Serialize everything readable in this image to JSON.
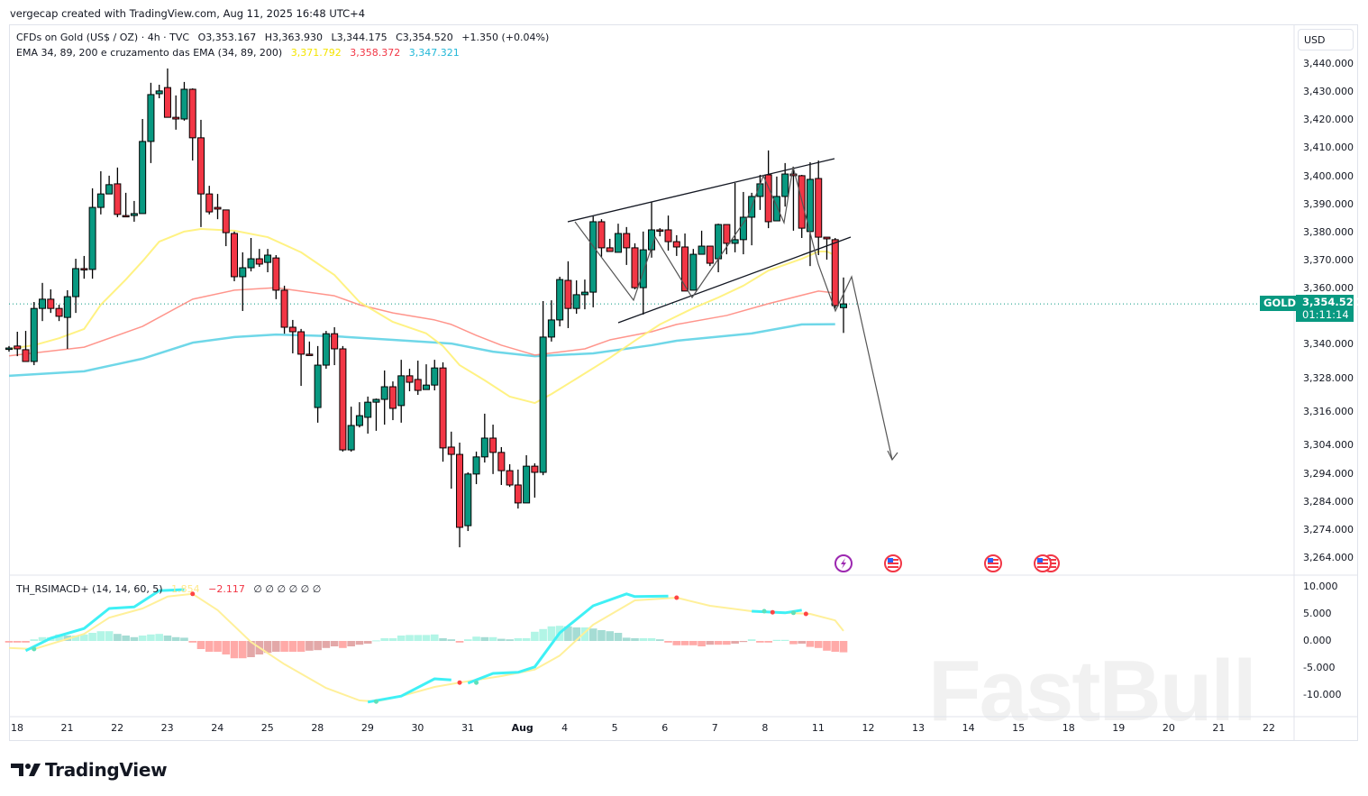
{
  "header": {
    "credit": "vergecap created with TradingView.com, Aug 11, 2025 16:48 UTC+4",
    "symbol_line": {
      "name": "CFDs on Gold (US$ / OZ) · 4h · TVC",
      "open": "O3,353.167",
      "high": "H3,363.930",
      "low": "L3,344.175",
      "close": "C3,354.520",
      "change": "+1.350 (+0.04%)"
    },
    "ema_line": {
      "name": "EMA 34, 89, 200 e cruzamento das EMA (34, 89, 200)",
      "v1": "3,371.792",
      "v2": "3,358.372",
      "v3": "3,347.321"
    }
  },
  "osc_legend": {
    "name": "TH_RSIMACD+ (14, 14, 60, 5)",
    "v1": "1.854",
    "v2": "−2.117",
    "nulls": [
      "∅",
      "∅",
      "∅",
      "∅",
      "∅",
      "∅"
    ]
  },
  "price_axis": {
    "currency": "USD",
    "ticks": [
      "3,440.000",
      "3,430.000",
      "3,420.000",
      "3,410.000",
      "3,400.000",
      "3,390.000",
      "3,380.000",
      "3,370.000",
      "3,360.000",
      "3,340.000",
      "3,328.000",
      "3,316.000",
      "3,304.000",
      "3,294.000",
      "3,284.000",
      "3,274.000",
      "3,264.000"
    ],
    "last_price": {
      "symbol": "GOLD",
      "price": "3,354.520",
      "countdown": "01:11:14"
    }
  },
  "osc_axis": {
    "ticks": [
      "10.000",
      "5.000",
      "0.000",
      "-5.000",
      "-10.000"
    ]
  },
  "time_axis": {
    "labels": [
      "18",
      "21",
      "22",
      "23",
      "24",
      "25",
      "28",
      "29",
      "30",
      "31",
      "Aug",
      "4",
      "5",
      "6",
      "7",
      "8",
      "11",
      "12",
      "13",
      "14",
      "15",
      "18",
      "19",
      "20",
      "21",
      "22"
    ]
  },
  "events": [
    "lightning-event-icon",
    "us-flag-event-icon",
    "us-flag-event-icon",
    "us-flag-event-icon",
    "us-flag-event-icon"
  ],
  "brand": {
    "logo_text": "TradingView"
  },
  "watermark": "FastBull",
  "colors": {
    "up": "#089981",
    "down": "#f23645",
    "ema34": "#fff176",
    "ema89": "#ff8a80",
    "ema200": "#5fd3e6",
    "osc_fast": "#3ff0f5",
    "osc_signal": "#fff09a",
    "hist_up": "#b2f5e6",
    "hist_up_fade": "#a5dcd4",
    "hist_down": "#ffaaa8",
    "hist_down_fade": "#e3a8a8",
    "last_price": "#089981"
  },
  "chart_data": {
    "type": "candlestick",
    "symbol": "CFDs on Gold (US$ / OZ)",
    "timeframe": "4h",
    "ylim": [
      3262,
      3448
    ],
    "candles_ohlc": [
      [
        3338.3,
        3339.5,
        3337.5,
        3338.8
      ],
      [
        3339.5,
        3344.6,
        3335.9,
        3338.5
      ],
      [
        3338.2,
        3344.9,
        3334.0,
        3334.0
      ],
      [
        3334.0,
        3355.2,
        3332.7,
        3352.9
      ],
      [
        3352.9,
        3362.0,
        3348.4,
        3356.2
      ],
      [
        3356.2,
        3359.7,
        3351.3,
        3352.9
      ],
      [
        3352.9,
        3354.2,
        3348.4,
        3350.1
      ],
      [
        3349.7,
        3359.4,
        3338.5,
        3357.1
      ],
      [
        3357.1,
        3370.6,
        3351.3,
        3367.1
      ],
      [
        3367.1,
        3371.6,
        3363.5,
        3366.8
      ],
      [
        3366.8,
        3395.7,
        3363.5,
        3388.9
      ],
      [
        3388.9,
        3401.8,
        3386.4,
        3393.7
      ],
      [
        3393.7,
        3400.2,
        3393.7,
        3397.0
      ],
      [
        3397.3,
        3403.1,
        3385.4,
        3386.4
      ],
      [
        3386.0,
        3394.1,
        3385.4,
        3385.9
      ],
      [
        3386.0,
        3391.2,
        3383.8,
        3386.7
      ],
      [
        3386.7,
        3420.4,
        3386.7,
        3412.4
      ],
      [
        3412.4,
        3433.3,
        3404.7,
        3429.1
      ],
      [
        3429.4,
        3432.6,
        3427.8,
        3430.4
      ],
      [
        3431.6,
        3438.4,
        3421.0,
        3421.0
      ],
      [
        3421.0,
        3428.8,
        3416.6,
        3420.4
      ],
      [
        3420.4,
        3433.6,
        3419.8,
        3431.0
      ],
      [
        3431.0,
        3431.3,
        3405.6,
        3413.7
      ],
      [
        3413.7,
        3420.1,
        3381.9,
        3393.7
      ],
      [
        3393.7,
        3396.6,
        3386.4,
        3387.3
      ],
      [
        3388.9,
        3393.7,
        3384.7,
        3388.3
      ],
      [
        3388.0,
        3388.0,
        3375.1,
        3379.9
      ],
      [
        3379.6,
        3380.3,
        3362.6,
        3364.2
      ],
      [
        3364.2,
        3372.9,
        3352.0,
        3367.4
      ],
      [
        3367.4,
        3378.0,
        3366.1,
        3370.6
      ],
      [
        3370.6,
        3374.1,
        3367.7,
        3368.7
      ],
      [
        3369.3,
        3374.1,
        3365.8,
        3371.9
      ],
      [
        3370.9,
        3371.9,
        3356.2,
        3359.4
      ],
      [
        3359.4,
        3361.0,
        3343.9,
        3346.2
      ],
      [
        3346.2,
        3348.8,
        3336.9,
        3344.6
      ],
      [
        3344.6,
        3345.6,
        3325.3,
        3336.6
      ],
      [
        3336.6,
        3341.1,
        3336.3,
        3336.5
      ],
      [
        3317.6,
        3339.5,
        3312.2,
        3332.7
      ],
      [
        3332.7,
        3344.9,
        3331.4,
        3343.9
      ],
      [
        3343.9,
        3346.2,
        3332.7,
        3338.5
      ],
      [
        3338.5,
        3339.5,
        3301.9,
        3302.5
      ],
      [
        3302.5,
        3317.9,
        3301.9,
        3311.2
      ],
      [
        3311.2,
        3319.5,
        3310.5,
        3314.7
      ],
      [
        3314.1,
        3321.5,
        3308.3,
        3319.5
      ],
      [
        3319.5,
        3320.8,
        3309.3,
        3320.5
      ],
      [
        3320.5,
        3330.8,
        3311.5,
        3325.0
      ],
      [
        3325.0,
        3326.9,
        3313.1,
        3317.3
      ],
      [
        3318.3,
        3334.6,
        3312.2,
        3328.9
      ],
      [
        3328.9,
        3331.4,
        3323.4,
        3326.6
      ],
      [
        3327.6,
        3334.3,
        3322.1,
        3323.7
      ],
      [
        3324.0,
        3333.0,
        3324.0,
        3325.6
      ],
      [
        3325.6,
        3334.6,
        3323.7,
        3331.7
      ],
      [
        3331.7,
        3333.7,
        3298.3,
        3303.2
      ],
      [
        3303.5,
        3309.0,
        3288.7,
        3300.9
      ],
      [
        3300.9,
        3305.1,
        3267.8,
        3274.9
      ],
      [
        3275.5,
        3294.5,
        3273.6,
        3293.9
      ],
      [
        3293.9,
        3301.9,
        3290.3,
        3300.0
      ],
      [
        3300.0,
        3315.4,
        3298.0,
        3306.7
      ],
      [
        3306.7,
        3311.5,
        3293.9,
        3301.6
      ],
      [
        3301.6,
        3303.5,
        3290.0,
        3295.1
      ],
      [
        3295.1,
        3297.4,
        3289.3,
        3290.0
      ],
      [
        3290.0,
        3295.5,
        3281.6,
        3283.6
      ],
      [
        3283.6,
        3300.6,
        3283.6,
        3296.7
      ],
      [
        3296.7,
        3297.7,
        3285.5,
        3294.5
      ],
      [
        3294.5,
        3355.5,
        3293.5,
        3342.7
      ],
      [
        3342.7,
        3355.8,
        3341.1,
        3348.8
      ],
      [
        3348.8,
        3364.2,
        3346.5,
        3363.2
      ],
      [
        3362.9,
        3369.7,
        3345.9,
        3352.9
      ],
      [
        3352.9,
        3362.9,
        3351.0,
        3357.8
      ],
      [
        3357.8,
        3363.2,
        3352.6,
        3358.7
      ],
      [
        3358.7,
        3385.7,
        3353.3,
        3383.8
      ],
      [
        3383.8,
        3384.7,
        3371.3,
        3374.5
      ],
      [
        3374.5,
        3377.7,
        3373.2,
        3373.2
      ],
      [
        3372.9,
        3383.1,
        3372.9,
        3379.6
      ],
      [
        3379.6,
        3381.9,
        3368.4,
        3374.5
      ],
      [
        3374.5,
        3376.1,
        3359.7,
        3360.3
      ],
      [
        3360.3,
        3380.3,
        3350.7,
        3373.8
      ],
      [
        3373.8,
        3390.9,
        3371.0,
        3380.9
      ],
      [
        3380.9,
        3381.5,
        3378.6,
        3380.8
      ],
      [
        3380.9,
        3386.0,
        3373.5,
        3376.7
      ],
      [
        3376.7,
        3379.0,
        3371.6,
        3374.8
      ],
      [
        3374.8,
        3379.6,
        3359.1,
        3359.1
      ],
      [
        3359.4,
        3374.1,
        3359.4,
        3372.2
      ],
      [
        3372.2,
        3380.6,
        3372.2,
        3375.1
      ],
      [
        3375.1,
        3375.1,
        3368.0,
        3369.0
      ],
      [
        3370.6,
        3383.1,
        3365.8,
        3382.8
      ],
      [
        3382.8,
        3382.8,
        3372.2,
        3376.1
      ],
      [
        3376.1,
        3397.6,
        3372.9,
        3377.4
      ],
      [
        3377.4,
        3394.4,
        3372.2,
        3385.4
      ],
      [
        3385.4,
        3394.1,
        3375.4,
        3392.8
      ],
      [
        3392.8,
        3400.5,
        3388.0,
        3397.3
      ],
      [
        3400.5,
        3409.2,
        3381.5,
        3383.8
      ],
      [
        3384.1,
        3399.9,
        3384.1,
        3392.8
      ],
      [
        3392.8,
        3404.7,
        3389.2,
        3400.8
      ],
      [
        3400.8,
        3403.4,
        3380.6,
        3400.2
      ],
      [
        3400.2,
        3400.5,
        3378.0,
        3381.5
      ],
      [
        3380.3,
        3405.0,
        3368.0,
        3398.9
      ],
      [
        3399.2,
        3405.6,
        3371.9,
        3378.3
      ],
      [
        3378.3,
        3378.3,
        3370.3,
        3377.7
      ],
      [
        3377.4,
        3378.0,
        3352.9,
        3353.9
      ],
      [
        3353.167,
        3363.93,
        3344.175,
        3354.52
      ]
    ],
    "ema34": [
      [
        0,
        3338.5
      ],
      [
        3,
        3339.8
      ],
      [
        6,
        3342.3
      ],
      [
        9,
        3345.6
      ],
      [
        11,
        3354.2
      ],
      [
        14,
        3363.2
      ],
      [
        16,
        3369.7
      ],
      [
        18,
        3376.7
      ],
      [
        21,
        3380.3
      ],
      [
        23,
        3381.2
      ],
      [
        27,
        3380.6
      ],
      [
        31,
        3378.3
      ],
      [
        35,
        3372.9
      ],
      [
        39,
        3364.8
      ],
      [
        42,
        3355.2
      ],
      [
        46,
        3348.1
      ],
      [
        50,
        3344.0
      ],
      [
        52,
        3339.5
      ],
      [
        54,
        3332.7
      ],
      [
        57,
        3327.3
      ],
      [
        60,
        3321.5
      ],
      [
        63,
        3319.2
      ],
      [
        65,
        3322.4
      ],
      [
        68,
        3327.9
      ],
      [
        72,
        3335.3
      ],
      [
        75,
        3341.4
      ],
      [
        78,
        3347.2
      ],
      [
        82,
        3353.0
      ],
      [
        85,
        3356.8
      ],
      [
        88,
        3361.0
      ],
      [
        91,
        3366.4
      ],
      [
        95,
        3370.6
      ],
      [
        97,
        3373.2
      ],
      [
        98,
        3373.2
      ],
      [
        99,
        3371.8
      ]
    ],
    "ema89": [
      [
        0,
        3336.0
      ],
      [
        9,
        3339.1
      ],
      [
        16,
        3346.5
      ],
      [
        22,
        3356.2
      ],
      [
        27,
        3359.4
      ],
      [
        32,
        3360.3
      ],
      [
        39,
        3357.4
      ],
      [
        42,
        3354.2
      ],
      [
        46,
        3351.3
      ],
      [
        51,
        3348.8
      ],
      [
        53,
        3347.2
      ],
      [
        56,
        3343.3
      ],
      [
        59,
        3339.8
      ],
      [
        63,
        3336.3
      ],
      [
        69,
        3338.5
      ],
      [
        72,
        3341.7
      ],
      [
        77,
        3344.6
      ],
      [
        80,
        3347.2
      ],
      [
        86,
        3350.4
      ],
      [
        91,
        3354.6
      ],
      [
        97,
        3359.1
      ],
      [
        99,
        3358.4
      ]
    ],
    "ema200": [
      [
        0,
        3328.9
      ],
      [
        9,
        3330.5
      ],
      [
        16,
        3335.0
      ],
      [
        22,
        3340.7
      ],
      [
        27,
        3342.7
      ],
      [
        32,
        3343.6
      ],
      [
        39,
        3343.0
      ],
      [
        46,
        3341.7
      ],
      [
        53,
        3340.4
      ],
      [
        58,
        3337.5
      ],
      [
        63,
        3335.9
      ],
      [
        70,
        3336.9
      ],
      [
        77,
        3339.8
      ],
      [
        80,
        3341.4
      ],
      [
        89,
        3344.0
      ],
      [
        95,
        3347.2
      ],
      [
        99,
        3347.3
      ]
    ],
    "oscillator": {
      "ylim": [
        -13,
        12
      ],
      "signal": [
        [
          0,
          -1.3
        ],
        [
          3,
          -1.5
        ],
        [
          9,
          1.3
        ],
        [
          12,
          4.3
        ],
        [
          16,
          6.0
        ],
        [
          19,
          8.2
        ],
        [
          22,
          8.7
        ],
        [
          25,
          5.7
        ],
        [
          29,
          -0.2
        ],
        [
          33,
          -4.3
        ],
        [
          38,
          -8.7
        ],
        [
          42,
          -11.0
        ],
        [
          44,
          -11.2
        ],
        [
          47,
          -10.2
        ],
        [
          51,
          -8.5
        ],
        [
          54,
          -7.7
        ],
        [
          59,
          -6.5
        ],
        [
          63,
          -5.3
        ],
        [
          66,
          -2.7
        ],
        [
          70,
          3.0
        ],
        [
          75,
          7.5
        ],
        [
          80,
          8.0
        ],
        [
          84,
          6.5
        ],
        [
          89,
          5.5
        ],
        [
          96,
          5.0
        ],
        [
          99,
          3.8
        ],
        [
          100,
          1.854
        ]
      ],
      "fast_segments": [
        [
          [
            2,
            -1.8
          ],
          [
            5,
            0.5
          ],
          [
            9,
            2.3
          ],
          [
            12,
            6.0
          ],
          [
            15,
            6.3
          ],
          [
            18,
            9.3
          ],
          [
            21,
            9.5
          ]
        ],
        [
          [
            43,
            -11.3
          ],
          [
            47,
            -10.2
          ],
          [
            51,
            -7.0
          ],
          [
            53,
            -7.2
          ]
        ],
        [
          [
            55,
            -7.8
          ],
          [
            58,
            -6.0
          ],
          [
            61,
            -5.8
          ],
          [
            63,
            -4.8
          ],
          [
            66,
            1.5
          ],
          [
            70,
            6.5
          ],
          [
            74,
            8.7
          ],
          [
            75,
            8.2
          ],
          [
            79,
            8.3
          ]
        ],
        [
          [
            89,
            5.5
          ],
          [
            93,
            5.2
          ],
          [
            95,
            5.7
          ]
        ]
      ],
      "cross_down": [
        [
          22,
          8.7
        ],
        [
          54,
          -7.7
        ],
        [
          80,
          8.0
        ],
        [
          91.5,
          5.3
        ],
        [
          95.5,
          5.0
        ]
      ],
      "cross_up": [
        [
          3,
          -1.5
        ],
        [
          44,
          -11.2
        ],
        [
          56,
          -7.7
        ],
        [
          90.5,
          5.5
        ],
        [
          94,
          5.2
        ]
      ],
      "histogram": [
        -0.3,
        -0.3,
        -0.3,
        0.3,
        0.7,
        0.7,
        1.2,
        1.0,
        1.0,
        1.2,
        1.5,
        1.8,
        1.8,
        1.3,
        1.0,
        0.7,
        1.0,
        1.2,
        1.3,
        1.0,
        0.7,
        0.6,
        -0.3,
        -1.5,
        -2.0,
        -2.0,
        -2.5,
        -3.2,
        -3.2,
        -3.0,
        -2.5,
        -2.2,
        -2.0,
        -2.0,
        -2.0,
        -2.0,
        -1.8,
        -1.7,
        -1.3,
        -1.0,
        -1.3,
        -1.0,
        -0.7,
        -0.5,
        0.1,
        0.5,
        0.5,
        1.0,
        1.1,
        1.1,
        1.1,
        1.2,
        0.5,
        0.3,
        -0.3,
        0.3,
        0.8,
        0.7,
        0.7,
        0.4,
        0.3,
        0.5,
        0.5,
        1.7,
        2.2,
        2.7,
        2.8,
        2.7,
        2.5,
        2.5,
        2.3,
        2.0,
        1.8,
        1.5,
        0.6,
        0.5,
        0.5,
        0.5,
        0.3,
        -0.3,
        -0.8,
        -0.8,
        -0.8,
        -1.0,
        -0.7,
        -0.7,
        -0.7,
        -0.5,
        -0.2,
        0.3,
        -0.3,
        -0.3,
        0.2,
        0.2,
        -0.6,
        -0.5,
        -1.1,
        -1.3,
        -1.8,
        -2.0,
        -2.1
      ]
    }
  }
}
